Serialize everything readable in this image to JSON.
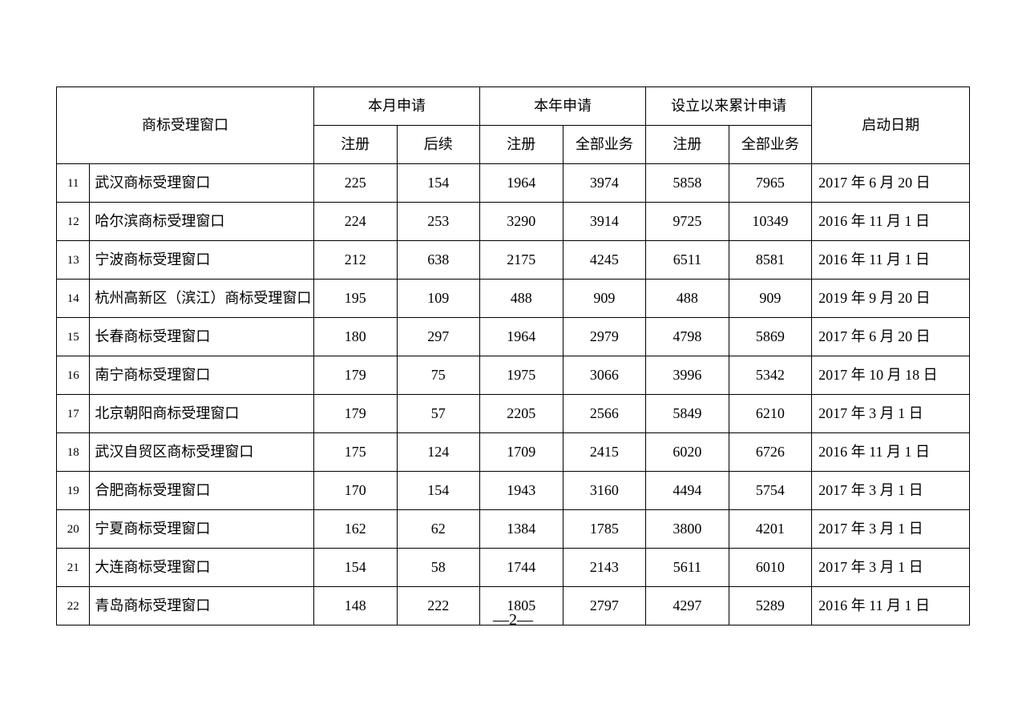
{
  "table": {
    "headers": {
      "window": "商标受理窗口",
      "month": "本月申请",
      "year": "本年申请",
      "cumulative": "设立以来累计申请",
      "start_date": "启动日期",
      "register": "注册",
      "followup": "后续",
      "all_biz": "全部业务"
    },
    "rows": [
      {
        "idx": "11",
        "name": "武汉商标受理窗口",
        "m1": "225",
        "m2": "154",
        "y1": "1964",
        "y2": "3974",
        "c1": "5858",
        "c2": "7965",
        "date": "2017 年 6 月 20 日"
      },
      {
        "idx": "12",
        "name": "哈尔滨商标受理窗口",
        "m1": "224",
        "m2": "253",
        "y1": "3290",
        "y2": "3914",
        "c1": "9725",
        "c2": "10349",
        "date": "2016 年 11 月 1 日"
      },
      {
        "idx": "13",
        "name": "宁波商标受理窗口",
        "m1": "212",
        "m2": "638",
        "y1": "2175",
        "y2": "4245",
        "c1": "6511",
        "c2": "8581",
        "date": "2016 年 11 月 1 日"
      },
      {
        "idx": "14",
        "name": "杭州高新区（滨江）商标受理窗口",
        "m1": "195",
        "m2": "109",
        "y1": "488",
        "y2": "909",
        "c1": "488",
        "c2": "909",
        "date": "2019 年 9 月 20 日"
      },
      {
        "idx": "15",
        "name": "长春商标受理窗口",
        "m1": "180",
        "m2": "297",
        "y1": "1964",
        "y2": "2979",
        "c1": "4798",
        "c2": "5869",
        "date": "2017 年 6 月 20 日"
      },
      {
        "idx": "16",
        "name": "南宁商标受理窗口",
        "m1": "179",
        "m2": "75",
        "y1": "1975",
        "y2": "3066",
        "c1": "3996",
        "c2": "5342",
        "date": "2017 年 10 月 18 日"
      },
      {
        "idx": "17",
        "name": "北京朝阳商标受理窗口",
        "m1": "179",
        "m2": "57",
        "y1": "2205",
        "y2": "2566",
        "c1": "5849",
        "c2": "6210",
        "date": "2017 年 3 月 1 日"
      },
      {
        "idx": "18",
        "name": "武汉自贸区商标受理窗口",
        "m1": "175",
        "m2": "124",
        "y1": "1709",
        "y2": "2415",
        "c1": "6020",
        "c2": "6726",
        "date": "2016 年 11 月 1 日"
      },
      {
        "idx": "19",
        "name": "合肥商标受理窗口",
        "m1": "170",
        "m2": "154",
        "y1": "1943",
        "y2": "3160",
        "c1": "4494",
        "c2": "5754",
        "date": "2017 年 3 月 1 日"
      },
      {
        "idx": "20",
        "name": "宁夏商标受理窗口",
        "m1": "162",
        "m2": "62",
        "y1": "1384",
        "y2": "1785",
        "c1": "3800",
        "c2": "4201",
        "date": "2017 年 3 月 1 日"
      },
      {
        "idx": "21",
        "name": "大连商标受理窗口",
        "m1": "154",
        "m2": "58",
        "y1": "1744",
        "y2": "2143",
        "c1": "5611",
        "c2": "6010",
        "date": "2017 年 3 月 1 日"
      },
      {
        "idx": "22",
        "name": "青岛商标受理窗口",
        "m1": "148",
        "m2": "222",
        "y1": "1805",
        "y2": "2797",
        "c1": "4297",
        "c2": "5289",
        "date": "2016 年 11 月 1 日"
      }
    ]
  },
  "page_number": "—2—"
}
